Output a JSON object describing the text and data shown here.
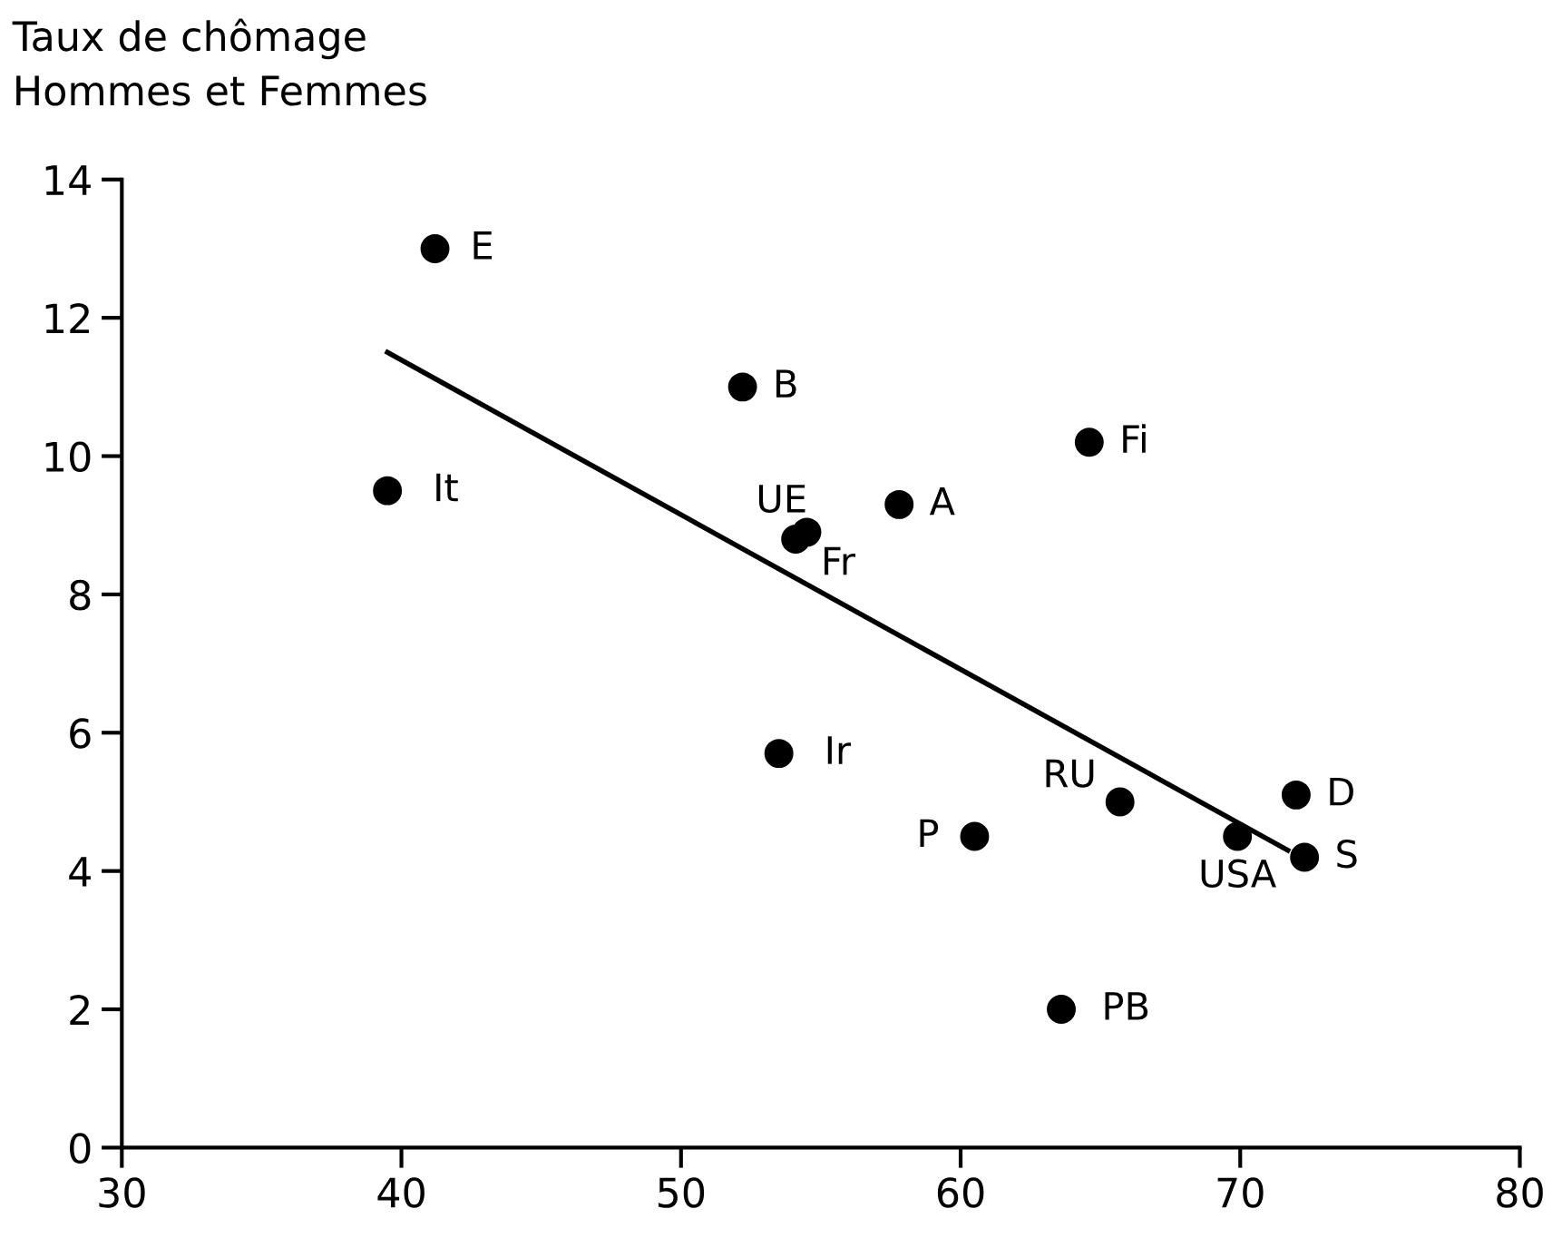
{
  "chart_data": {
    "type": "scatter",
    "title": "Taux de chômage\nHommes et Femmes",
    "series": [
      {
        "color": "#000000",
        "marker": "circle",
        "x": [
          41.2,
          52.2,
          39.5,
          54.5,
          54.1,
          57.8,
          64.6,
          53.5,
          65.7,
          60.5,
          69.9,
          72.0,
          72.3,
          63.6
        ],
        "values": [
          13.0,
          11.0,
          9.5,
          8.9,
          8.8,
          9.3,
          10.2,
          5.7,
          5.0,
          4.5,
          4.5,
          5.1,
          4.2,
          2.0
        ]
      },
      {
        "type": "line",
        "color": "#000000",
        "x": [
          39.5,
          71.7
        ],
        "values": [
          11.5,
          4.3
        ]
      }
    ],
    "annotations": [
      {
        "text": "E",
        "x": 41.2,
        "y": 13.0
      },
      {
        "text": "B",
        "x": 52.2,
        "y": 11.0
      },
      {
        "text": "It",
        "x": 39.5,
        "y": 9.5
      },
      {
        "text": "UE",
        "x": 54.5,
        "y": 8.9
      },
      {
        "text": "Fr",
        "x": 54.1,
        "y": 8.8
      },
      {
        "text": "A",
        "x": 57.8,
        "y": 9.3
      },
      {
        "text": "Fi",
        "x": 64.6,
        "y": 10.2
      },
      {
        "text": "Ir",
        "x": 53.5,
        "y": 5.7
      },
      {
        "text": "RU",
        "x": 65.7,
        "y": 5.0
      },
      {
        "text": "P",
        "x": 60.5,
        "y": 4.5
      },
      {
        "text": "USA",
        "x": 69.9,
        "y": 4.5
      },
      {
        "text": "D",
        "x": 72.0,
        "y": 5.1
      },
      {
        "text": "S",
        "x": 72.3,
        "y": 4.2
      },
      {
        "text": "PB",
        "x": 63.6,
        "y": 2.0
      }
    ],
    "xlim": [
      30,
      80
    ],
    "xticks": [
      30,
      40,
      50,
      60,
      70,
      80
    ],
    "ylim": [
      0,
      14
    ],
    "yticks": [
      0,
      2,
      4,
      6,
      8,
      10,
      12,
      14
    ],
    "grid": false,
    "legend": false
  }
}
